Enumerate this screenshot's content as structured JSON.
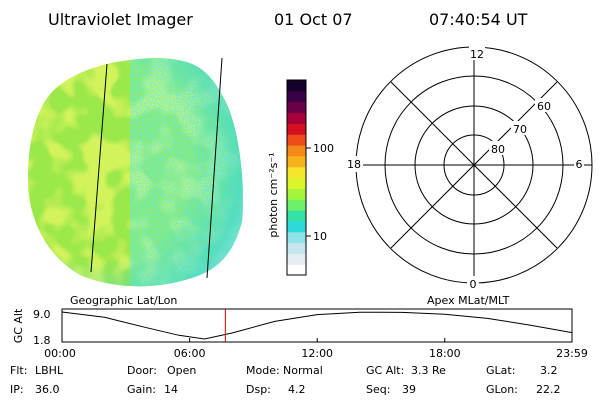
{
  "header": {
    "instrument": "Ultraviolet Imager",
    "date": "01 Oct 07",
    "time": "07:40:54 UT"
  },
  "colorbar": {
    "unit_label": "photon cm⁻²s⁻¹",
    "ticks": [
      {
        "label": "100",
        "value": 100
      },
      {
        "label": "10",
        "value": 10
      }
    ],
    "colors": [
      "#ffffff",
      "#e4eef2",
      "#c6e5ee",
      "#8fe3e8",
      "#2fd9d9",
      "#35e1a4",
      "#6df06a",
      "#a5f53a",
      "#dcf52a",
      "#f5e52b",
      "#f6b21d",
      "#f48a1a",
      "#ee4c1b",
      "#d40f1f",
      "#a8003d",
      "#6a0043",
      "#3a0045",
      "#150029"
    ]
  },
  "earth_image": {
    "land_color": "#9be84a",
    "ocean_color": "#2fd3df"
  },
  "polar_grid": {
    "mlt_labels": {
      "top": "12",
      "right": "6",
      "bottom": "0",
      "left": "18"
    },
    "lat_labels": [
      "60",
      "70",
      "80"
    ]
  },
  "map_labels": {
    "left": "Geographic Lat/Lon",
    "right": "Apex MLat/MLT"
  },
  "altitude_plot": {
    "ylabel": "GC Alt",
    "yticks": [
      "9.0",
      "1.8"
    ],
    "xticks": [
      "00:00",
      "06:00",
      "12:00",
      "18:00",
      "23:59"
    ],
    "current_time_marker_hours": 7.68,
    "marker_color": "#d00000"
  },
  "chart_data": {
    "type": "line",
    "title": "",
    "xlabel": "",
    "ylabel": "GC Alt",
    "x": [
      0,
      2,
      4,
      5.5,
      6.7,
      8,
      10,
      12,
      14,
      16,
      18,
      20,
      22,
      23.98
    ],
    "series": [
      {
        "values": [
          9.0,
          7.6,
          4.8,
          2.8,
          1.8,
          3.4,
          6.5,
          8.3,
          8.95,
          8.9,
          8.4,
          7.3,
          5.5,
          3.5
        ]
      }
    ],
    "ylim": [
      1.8,
      9.0
    ],
    "xlim": [
      0,
      23.98
    ]
  },
  "info": {
    "rows": [
      [
        {
          "label": "Flt:",
          "value": "LBHL"
        },
        {
          "label": "Door:",
          "value": "Open"
        },
        {
          "label": "Mode:",
          "value": "Normal"
        },
        {
          "label": "GC Alt:",
          "value": "3.3 Re"
        },
        {
          "label": "GLat:",
          "value": "3.2"
        }
      ],
      [
        {
          "label": "IP:",
          "value": "36.0"
        },
        {
          "label": "Gain:",
          "value": "14"
        },
        {
          "label": "Dsp:",
          "value": "4.2"
        },
        {
          "label": "Seq:",
          "value": "39"
        },
        {
          "label": "GLon:",
          "value": "22.2"
        }
      ]
    ]
  }
}
